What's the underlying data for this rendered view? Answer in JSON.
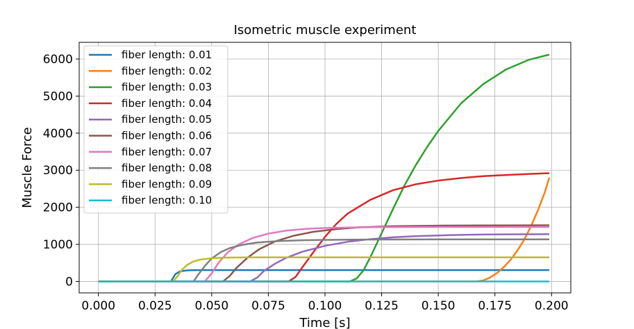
{
  "chart_data": {
    "type": "line",
    "title": "Isometric muscle experiment",
    "xlabel": "Time [s]",
    "ylabel": "Muscle Force",
    "xlim": [
      -0.0085,
      0.2085
    ],
    "ylim": [
      -310,
      6450
    ],
    "xticks": [
      0.0,
      0.025,
      0.05,
      0.075,
      0.1,
      0.125,
      0.15,
      0.175,
      0.2
    ],
    "xtick_labels": [
      "0.000",
      "0.025",
      "0.050",
      "0.075",
      "0.100",
      "0.125",
      "0.150",
      "0.175",
      "0.200"
    ],
    "yticks": [
      0,
      1000,
      2000,
      3000,
      4000,
      5000,
      6000
    ],
    "ytick_labels": [
      "0",
      "1000",
      "2000",
      "3000",
      "4000",
      "5000",
      "6000"
    ],
    "grid": true,
    "legend_position": "top-left",
    "series": [
      {
        "name": "fiber length: 0.01",
        "color": "#1f77b4",
        "x": [
          0.0,
          0.032,
          0.034,
          0.036,
          0.038,
          0.04,
          0.045,
          0.05,
          0.06,
          0.08,
          0.1,
          0.15,
          0.199
        ],
        "y": [
          0,
          0,
          200,
          270,
          290,
          300,
          305,
          305,
          305,
          305,
          305,
          305,
          305
        ]
      },
      {
        "name": "fiber length: 0.02",
        "color": "#ff7f0e",
        "x": [
          0.0,
          0.167,
          0.17,
          0.173,
          0.176,
          0.179,
          0.182,
          0.185,
          0.188,
          0.191,
          0.194,
          0.197,
          0.199
        ],
        "y": [
          0,
          0,
          30,
          110,
          230,
          390,
          590,
          840,
          1130,
          1500,
          1920,
          2400,
          2800
        ]
      },
      {
        "name": "fiber length: 0.03",
        "color": "#2ca02c",
        "x": [
          0.0,
          0.111,
          0.114,
          0.117,
          0.12,
          0.125,
          0.13,
          0.135,
          0.14,
          0.145,
          0.15,
          0.16,
          0.17,
          0.18,
          0.19,
          0.199
        ],
        "y": [
          0,
          0,
          80,
          300,
          650,
          1300,
          1950,
          2580,
          3130,
          3620,
          4060,
          4800,
          5330,
          5720,
          5980,
          6120
        ]
      },
      {
        "name": "fiber length: 0.04",
        "color": "#d62728",
        "x": [
          0.0,
          0.084,
          0.087,
          0.09,
          0.095,
          0.1,
          0.105,
          0.11,
          0.12,
          0.13,
          0.14,
          0.15,
          0.16,
          0.17,
          0.18,
          0.19,
          0.199
        ],
        "y": [
          0,
          0,
          120,
          380,
          800,
          1200,
          1550,
          1830,
          2200,
          2460,
          2620,
          2720,
          2790,
          2840,
          2870,
          2900,
          2920
        ]
      },
      {
        "name": "fiber length: 0.05",
        "color": "#9467bd",
        "x": [
          0.0,
          0.067,
          0.07,
          0.073,
          0.078,
          0.083,
          0.09,
          0.1,
          0.11,
          0.12,
          0.13,
          0.14,
          0.15,
          0.16,
          0.17,
          0.18,
          0.199
        ],
        "y": [
          0,
          0,
          100,
          280,
          480,
          640,
          800,
          960,
          1070,
          1140,
          1190,
          1220,
          1240,
          1255,
          1265,
          1270,
          1275
        ]
      },
      {
        "name": "fiber length: 0.06",
        "color": "#8c564b",
        "x": [
          0.0,
          0.055,
          0.058,
          0.061,
          0.066,
          0.071,
          0.078,
          0.086,
          0.095,
          0.105,
          0.115,
          0.13,
          0.15,
          0.17,
          0.199
        ],
        "y": [
          0,
          0,
          150,
          370,
          650,
          870,
          1080,
          1230,
          1340,
          1410,
          1460,
          1490,
          1505,
          1510,
          1515
        ]
      },
      {
        "name": "fiber length: 0.07",
        "color": "#e377c2",
        "x": [
          0.0,
          0.047,
          0.05,
          0.053,
          0.057,
          0.062,
          0.068,
          0.075,
          0.083,
          0.092,
          0.1,
          0.11,
          0.125,
          0.15,
          0.199
        ],
        "y": [
          0,
          0,
          220,
          500,
          780,
          1000,
          1170,
          1290,
          1370,
          1420,
          1440,
          1455,
          1465,
          1470,
          1470
        ]
      },
      {
        "name": "fiber length: 0.08",
        "color": "#7f7f7f",
        "x": [
          0.0,
          0.042,
          0.044,
          0.047,
          0.05,
          0.054,
          0.058,
          0.063,
          0.07,
          0.08,
          0.09,
          0.1,
          0.12,
          0.15,
          0.199
        ],
        "y": [
          0,
          0,
          180,
          420,
          620,
          790,
          900,
          980,
          1050,
          1090,
          1110,
          1120,
          1130,
          1135,
          1135
        ]
      },
      {
        "name": "fiber length: 0.09",
        "color": "#bcbd22",
        "x": [
          0.0,
          0.033,
          0.035,
          0.037,
          0.039,
          0.042,
          0.045,
          0.05,
          0.055,
          0.06,
          0.07,
          0.08,
          0.1,
          0.15,
          0.199
        ],
        "y": [
          0,
          0,
          150,
          320,
          440,
          540,
          590,
          625,
          640,
          645,
          650,
          650,
          650,
          650,
          650
        ]
      },
      {
        "name": "fiber length: 0.10",
        "color": "#17becf",
        "x": [
          0.0,
          0.199
        ],
        "y": [
          0,
          0
        ]
      }
    ]
  }
}
